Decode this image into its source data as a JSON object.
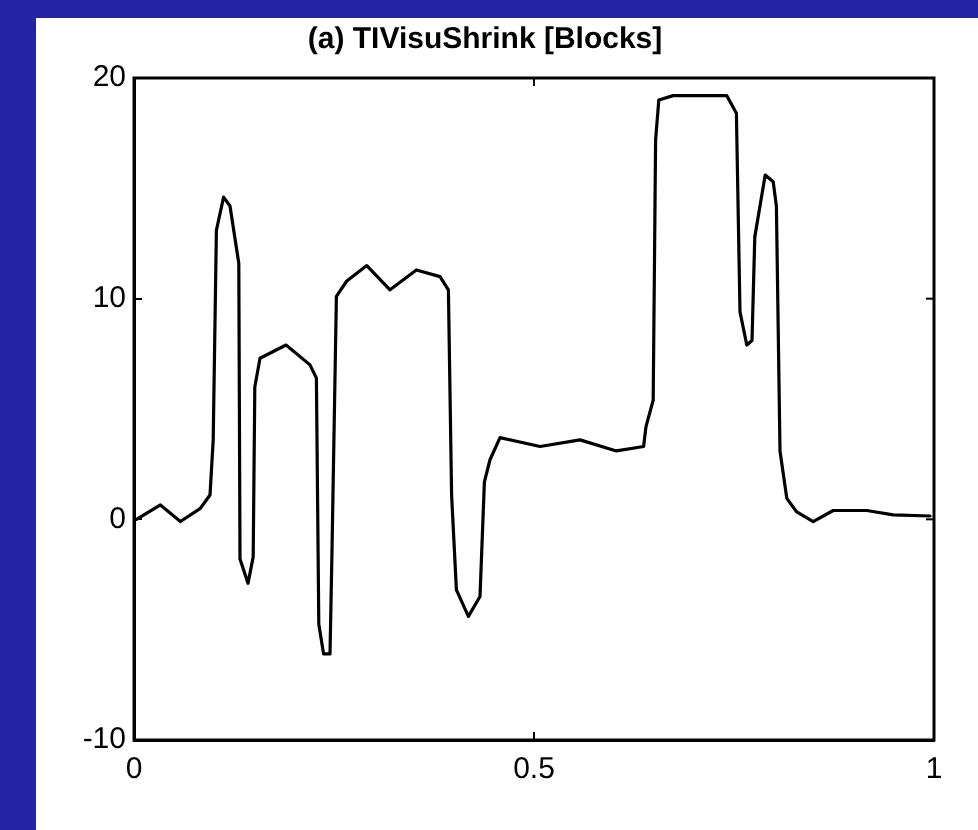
{
  "chart_data": {
    "type": "line",
    "title": "(a) TIVisuShrink [Blocks]",
    "xlim": [
      0,
      1
    ],
    "xticks": [
      0,
      0.5,
      1
    ],
    "ylim": [
      -10,
      20
    ],
    "yticks": [
      -10,
      0,
      10,
      20
    ],
    "grid": false,
    "legend": false,
    "marker": "none",
    "line_style": "solid",
    "series": [
      {
        "color": "#000000",
        "x": [
          0.003,
          0.033,
          0.058,
          0.083,
          0.095,
          0.099,
          0.103,
          0.112,
          0.12,
          0.131,
          0.1325,
          0.1425,
          0.149,
          0.151,
          0.1575,
          0.19,
          0.22,
          0.228,
          0.231,
          0.237,
          0.245,
          0.2475,
          0.253,
          0.266,
          0.291,
          0.32,
          0.353,
          0.3825,
          0.393,
          0.397,
          0.403,
          0.418,
          0.4325,
          0.438,
          0.445,
          0.4575,
          0.5075,
          0.5575,
          0.603,
          0.637,
          0.64,
          0.649,
          0.652,
          0.656,
          0.674,
          0.741,
          0.753,
          0.7575,
          0.766,
          0.7725,
          0.776,
          0.789,
          0.799,
          0.803,
          0.8075,
          0.816,
          0.828,
          0.849,
          0.874,
          0.916,
          0.949,
          0.995
        ],
        "values": [
          0.0,
          0.65,
          -0.1,
          0.5,
          1.1,
          3.6,
          13.1,
          14.6,
          14.2,
          11.6,
          -1.8,
          -2.9,
          -1.7,
          6.0,
          7.3,
          7.9,
          7.0,
          6.4,
          -4.75,
          -6.1,
          -6.1,
          -1.4,
          10.1,
          10.8,
          11.5,
          10.4,
          11.3,
          11.0,
          10.4,
          1.1,
          -3.2,
          -4.4,
          -3.5,
          1.7,
          2.7,
          3.7,
          3.3,
          3.6,
          3.1,
          3.3,
          4.2,
          5.4,
          17.2,
          19.0,
          19.2,
          19.2,
          18.4,
          9.4,
          7.9,
          8.1,
          12.8,
          15.6,
          15.3,
          14.2,
          3.1,
          0.95,
          0.35,
          -0.1,
          0.4,
          0.4,
          0.2,
          0.15
        ]
      }
    ]
  }
}
